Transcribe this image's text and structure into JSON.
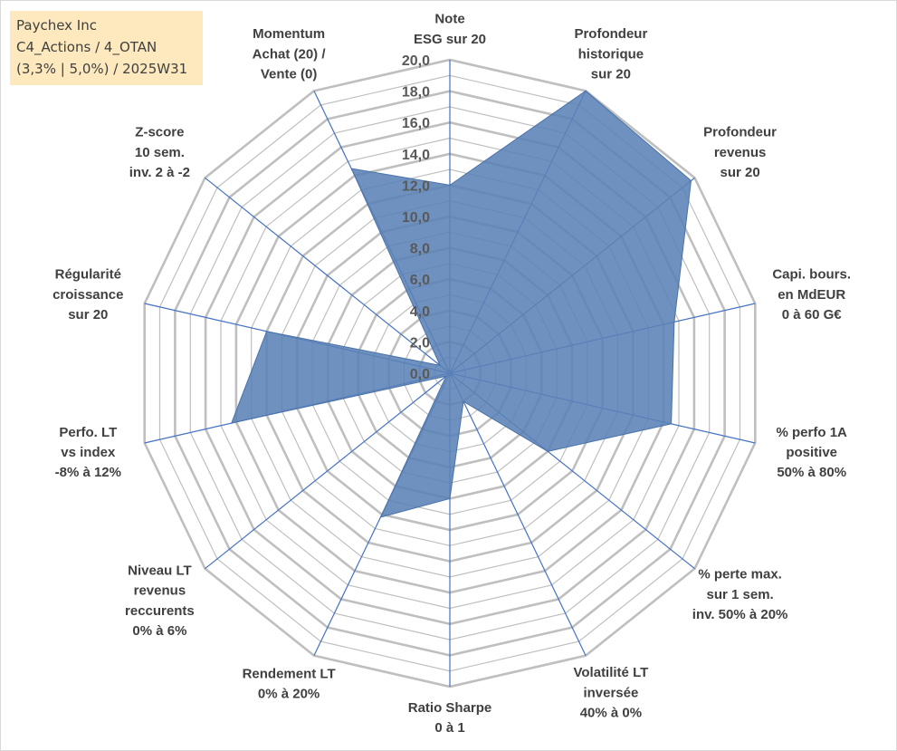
{
  "info": {
    "line1": "Paychex Inc",
    "line2": "C4_Actions / 4_OTAN",
    "line3": "(3,3% | 5,0%) / 2025W31"
  },
  "chart_data": {
    "type": "radar",
    "rmin": 0,
    "rmax": 20,
    "tick_step": 2,
    "grid_step": 1,
    "tick_labels": [
      "0,0",
      "2,0",
      "4,0",
      "6,0",
      "8,0",
      "10,0",
      "12,0",
      "14,0",
      "16,0",
      "18,0",
      "20,0"
    ],
    "axes": [
      [
        "Note",
        "ESG sur 20"
      ],
      [
        "Profondeur",
        "historique",
        "sur 20"
      ],
      [
        "Profondeur",
        "revenus",
        "sur 20"
      ],
      [
        "Capi. bours.",
        "en MdEUR",
        "0 à 60 G€"
      ],
      [
        "% perfo 1A",
        "positive",
        "50% à 80%"
      ],
      [
        "% perte max.",
        "sur 1 sem.",
        "inv. 50% à 20%"
      ],
      [
        "Volatilité LT",
        "inversée",
        "40% à 0%"
      ],
      [
        "Ratio Sharpe",
        "0 à 1"
      ],
      [
        "Rendement LT",
        "0% à 20%"
      ],
      [
        "Niveau LT",
        "revenus",
        "reccurents",
        "0% à 6%"
      ],
      [
        "Perfo. LT",
        "vs index",
        "-8% à 12%"
      ],
      [
        "Régularité",
        "croissance",
        "sur 20"
      ],
      [
        "Z-score",
        "10 sem.",
        "inv. 2 à -2"
      ],
      [
        "Momentum",
        "Achat (20) /",
        "Vente (0)"
      ]
    ],
    "series": [
      {
        "values": [
          12.0,
          20.0,
          19.7,
          14.7,
          14.5,
          8.0,
          2.0,
          8.0,
          10.2,
          0.3,
          14.3,
          12.0,
          0.8,
          14.5
        ],
        "fill": "#5b82b6",
        "stroke": "#4a72a8"
      }
    ],
    "grid_color": "#bfbfbf",
    "spoke_color": "#4472c4",
    "grid": true,
    "legend": "none"
  }
}
